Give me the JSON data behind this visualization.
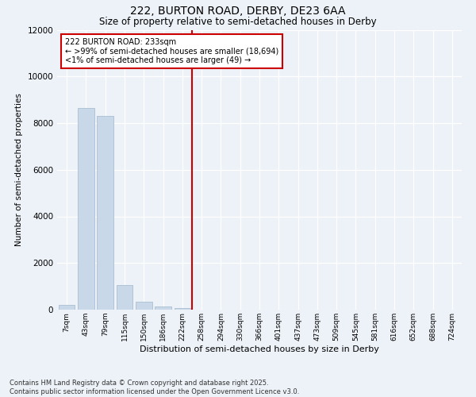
{
  "title_line1": "222, BURTON ROAD, DERBY, DE23 6AA",
  "title_line2": "Size of property relative to semi-detached houses in Derby",
  "xlabel": "Distribution of semi-detached houses by size in Derby",
  "ylabel": "Number of semi-detached properties",
  "bar_labels": [
    "7sqm",
    "43sqm",
    "79sqm",
    "115sqm",
    "150sqm",
    "186sqm",
    "222sqm",
    "258sqm",
    "294sqm",
    "330sqm",
    "366sqm",
    "401sqm",
    "437sqm",
    "473sqm",
    "509sqm",
    "545sqm",
    "581sqm",
    "616sqm",
    "652sqm",
    "688sqm",
    "724sqm"
  ],
  "bar_values": [
    200,
    8650,
    8300,
    1050,
    350,
    120,
    80,
    0,
    0,
    0,
    0,
    0,
    0,
    0,
    0,
    0,
    0,
    0,
    0,
    0,
    0
  ],
  "bar_color": "#c8d8e8",
  "bar_edgecolor": "#a0b8cc",
  "vline_x": 6.5,
  "vline_color": "#cc0000",
  "ylim": [
    0,
    12000
  ],
  "yticks": [
    0,
    2000,
    4000,
    6000,
    8000,
    10000,
    12000
  ],
  "annotation_title": "222 BURTON ROAD: 233sqm",
  "annotation_line1": "← >99% of semi-detached houses are smaller (18,694)",
  "annotation_line2": "<1% of semi-detached houses are larger (49) →",
  "footer_line1": "Contains HM Land Registry data © Crown copyright and database right 2025.",
  "footer_line2": "Contains public sector information licensed under the Open Government Licence v3.0.",
  "bg_color": "#edf2f8",
  "plot_bg_color": "#edf2f8",
  "title1_fontsize": 10,
  "title2_fontsize": 9
}
